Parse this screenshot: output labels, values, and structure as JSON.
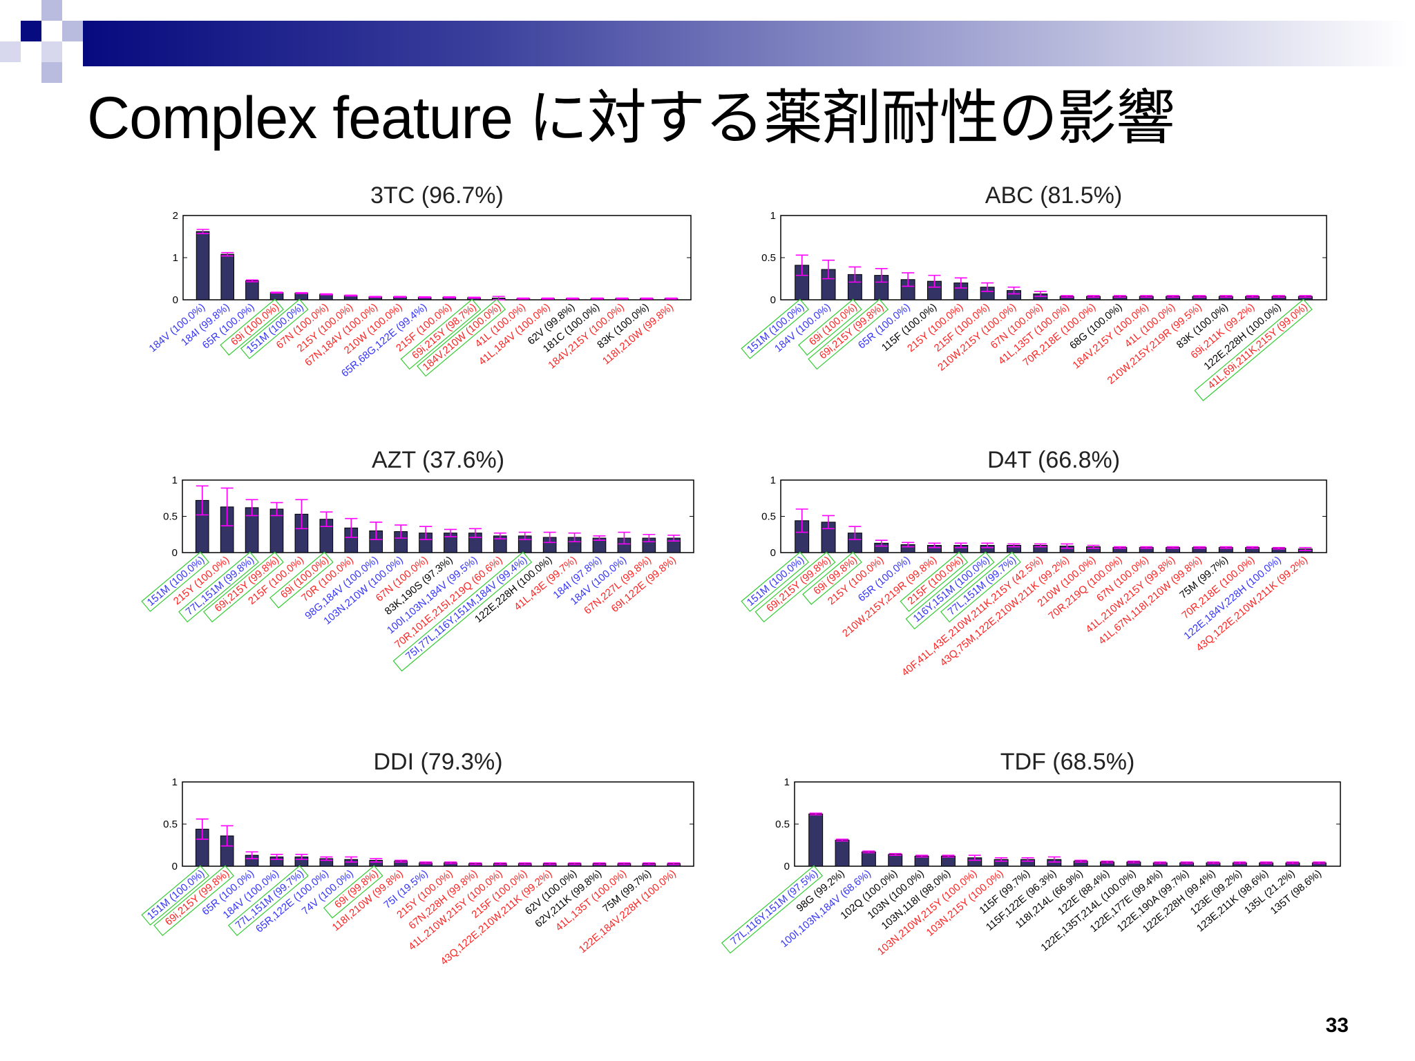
{
  "slide": {
    "title": "Complex feature に対する薬剤耐性の影響",
    "page_number": "33",
    "colors": {
      "bar": "#333366",
      "error": "#ff00ff",
      "box": "#33cc33",
      "label_blue": "#3333ff",
      "label_red": "#ff2222",
      "label_black": "#000000"
    }
  },
  "chart_data": [
    {
      "type": "bar",
      "title": "3TC (96.7%)",
      "ylim": [
        0,
        2
      ],
      "yticks": [
        "0",
        "1",
        "2"
      ],
      "values": [
        1.62,
        1.08,
        0.45,
        0.17,
        0.16,
        0.13,
        0.1,
        0.07,
        0.07,
        0.06,
        0.06,
        0.05,
        0.04,
        0.03,
        0.03,
        0.03,
        0.03,
        0.03,
        0.03,
        0.03
      ],
      "errors": [
        0.05,
        0.04,
        0.02,
        0.01,
        0.01,
        0.01,
        0.01,
        0.01,
        0.01,
        0.01,
        0.01,
        0.01,
        0.04,
        0.01,
        0.01,
        0.01,
        0.01,
        0.01,
        0.01,
        0.01
      ],
      "labels": [
        "184V (100.0%)",
        "184I (99.8%)",
        "65R (100.0%)",
        "69i (100.0%)",
        "151M (100.0%)",
        "67N (100.0%)",
        "215Y (100.0%)",
        "67N,184V (100.0%)",
        "210W (100.0%)",
        "65R,68G,122E (99.4%)",
        "215F (100.0%)",
        "69i,215Y (98.7%)",
        "184V,210W (100.0%)",
        "41L (100.0%)",
        "41L,184V (100.0%)",
        "62V (99.8%)",
        "181C (100.0%)",
        "184V,215Y (100.0%)",
        "83K (100.0%)",
        "118I,210W (99.8%)"
      ],
      "label_colors": [
        "b",
        "b",
        "b",
        "r",
        "b",
        "r",
        "r",
        "r",
        "r",
        "b",
        "r",
        "r",
        "r",
        "r",
        "r",
        "k",
        "k",
        "r",
        "k",
        "r"
      ],
      "boxed": [
        3,
        4,
        11,
        12
      ]
    },
    {
      "type": "bar",
      "title": "ABC (81.5%)",
      "ylim": [
        0,
        1
      ],
      "yticks": [
        "0",
        "0.5",
        "1"
      ],
      "values": [
        0.41,
        0.36,
        0.3,
        0.29,
        0.24,
        0.22,
        0.2,
        0.15,
        0.11,
        0.07,
        0.04,
        0.04,
        0.04,
        0.04,
        0.04,
        0.04,
        0.04,
        0.04,
        0.04,
        0.04
      ],
      "errors": [
        0.12,
        0.11,
        0.09,
        0.08,
        0.08,
        0.07,
        0.06,
        0.05,
        0.04,
        0.03,
        0.01,
        0.01,
        0.01,
        0.01,
        0.01,
        0.01,
        0.01,
        0.01,
        0.01,
        0.01
      ],
      "labels": [
        "151M (100.0%)",
        "184V (100.0%)",
        "69i (100.0%)",
        "69i,215Y (99.8%)",
        "65R (100.0%)",
        "115F (100.0%)",
        "215Y (100.0%)",
        "215F (100.0%)",
        "210W,215Y (100.0%)",
        "67N (100.0%)",
        "41L,135T (100.0%)",
        "70R,218E (100.0%)",
        "68G (100.0%)",
        "184V,215Y (100.0%)",
        "41L (100.0%)",
        "210W,215Y,219R (99.5%)",
        "83K (100.0%)",
        "69i,211K (99.2%)",
        "122E,228H (100.0%)",
        "41L,69i,211K,215Y (99.0%)"
      ],
      "label_colors": [
        "b",
        "b",
        "r",
        "r",
        "b",
        "k",
        "r",
        "r",
        "r",
        "r",
        "r",
        "r",
        "k",
        "r",
        "r",
        "r",
        "k",
        "r",
        "k",
        "r"
      ],
      "boxed": [
        0,
        2,
        3,
        19
      ]
    },
    {
      "type": "bar",
      "title": "AZT (37.6%)",
      "ylim": [
        0,
        1
      ],
      "yticks": [
        "0",
        "0.5",
        "1"
      ],
      "values": [
        0.72,
        0.63,
        0.62,
        0.6,
        0.53,
        0.46,
        0.34,
        0.3,
        0.29,
        0.27,
        0.27,
        0.27,
        0.23,
        0.23,
        0.21,
        0.21,
        0.2,
        0.2,
        0.2,
        0.2
      ],
      "errors": [
        0.2,
        0.26,
        0.11,
        0.09,
        0.2,
        0.1,
        0.13,
        0.12,
        0.09,
        0.09,
        0.05,
        0.06,
        0.04,
        0.05,
        0.07,
        0.06,
        0.03,
        0.08,
        0.05,
        0.04
      ],
      "labels": [
        "151M (100.0%)",
        "215Y (100.0%)",
        "77L,151M (99.8%)",
        "69i,215Y (99.8%)",
        "215F (100.0%)",
        "69i (100.0%)",
        "70R (100.0%)",
        "98G,184V (100.0%)",
        "103N,210W (100.0%)",
        "67N (100.0%)",
        "83K,190S (97.3%)",
        "100I,103N,184V (99.5%)",
        "70R,101E,215I,219Q (60.6%)",
        "75I,77L,116Y,151M,184V (99.4%)",
        "122E,228H (100.0%)",
        "41L,43E (99.7%)",
        "184I (97.8%)",
        "184V (100.0%)",
        "67N,227L (99.8%)",
        "69I,122E (99.8%)"
      ],
      "label_colors": [
        "b",
        "r",
        "b",
        "r",
        "r",
        "r",
        "r",
        "b",
        "b",
        "r",
        "k",
        "b",
        "r",
        "b",
        "k",
        "r",
        "b",
        "b",
        "r",
        "r"
      ],
      "boxed": [
        0,
        2,
        3,
        5,
        13
      ]
    },
    {
      "type": "bar",
      "title": "D4T (66.8%)",
      "ylim": [
        0,
        1
      ],
      "yticks": [
        "0",
        "0.5",
        "1"
      ],
      "values": [
        0.44,
        0.42,
        0.27,
        0.13,
        0.11,
        0.1,
        0.1,
        0.1,
        0.1,
        0.1,
        0.09,
        0.08,
        0.07,
        0.07,
        0.07,
        0.07,
        0.07,
        0.07,
        0.06,
        0.05
      ],
      "errors": [
        0.16,
        0.09,
        0.09,
        0.04,
        0.03,
        0.03,
        0.03,
        0.03,
        0.02,
        0.02,
        0.03,
        0.02,
        0.01,
        0.01,
        0.01,
        0.01,
        0.01,
        0.01,
        0.01,
        0.02
      ],
      "labels": [
        "151M (100.0%)",
        "69i,215Y (99.8%)",
        "69i (99.8%)",
        "215Y (100.0%)",
        "65R (100.0%)",
        "210W,215Y,219R (99.8%)",
        "215F (100.0%)",
        "116Y,151M (100.0%)",
        "77L,151M (99.7%)",
        "40F,41L,43E,210W,211K,215Y (42.5%)",
        "43Q,75M,122E,210W,211K (99.2%)",
        "210W (100.0%)",
        "70R,219Q (100.0%)",
        "67N (100.0%)",
        "41L,210W,215Y (99.8%)",
        "41L,67N,118I,210W (99.8%)",
        "75M (99.7%)",
        "70R,218E (100.0%)",
        "122E,184V,228H (100.0%)",
        "43Q,122E,210W,211K (99.2%)"
      ],
      "label_colors": [
        "b",
        "r",
        "r",
        "r",
        "b",
        "r",
        "r",
        "b",
        "b",
        "r",
        "r",
        "r",
        "r",
        "r",
        "r",
        "r",
        "k",
        "r",
        "b",
        "r"
      ],
      "boxed": [
        0,
        1,
        2,
        6,
        7,
        8
      ]
    },
    {
      "type": "bar",
      "title": "DDI (79.3%)",
      "ylim": [
        0,
        1
      ],
      "yticks": [
        "0",
        "0.5",
        "1"
      ],
      "values": [
        0.44,
        0.36,
        0.13,
        0.11,
        0.11,
        0.09,
        0.08,
        0.07,
        0.06,
        0.04,
        0.04,
        0.03,
        0.03,
        0.03,
        0.03,
        0.03,
        0.03,
        0.03,
        0.03,
        0.03
      ],
      "errors": [
        0.12,
        0.12,
        0.04,
        0.03,
        0.03,
        0.02,
        0.03,
        0.02,
        0.01,
        0.01,
        0.01,
        0.01,
        0.01,
        0.01,
        0.01,
        0.01,
        0.01,
        0.01,
        0.01,
        0.01
      ],
      "labels": [
        "151M (100.0%)",
        "69i,215Y (99.8%)",
        "65R (100.0%)",
        "184V (100.0%)",
        "77L,151M (99.7%)",
        "65R,122E (100.0%)",
        "74V (100.0%)",
        "69i (99.8%)",
        "118I,210W (99.8%)",
        "75I (19.5%)",
        "215Y (100.0%)",
        "67N,228H (99.8%)",
        "41L,210W,215Y (100.0%)",
        "215F (100.0%)",
        "43Q,122E,210W,211K (99.2%)",
        "62V (100.0%)",
        "62V,211K (99.8%)",
        "41L,135T (100.0%)",
        "75M (99.7%)",
        "122E,184V,228H (100.0%)"
      ],
      "label_colors": [
        "b",
        "r",
        "b",
        "b",
        "b",
        "b",
        "b",
        "r",
        "r",
        "b",
        "r",
        "r",
        "r",
        "r",
        "r",
        "k",
        "k",
        "r",
        "k",
        "r"
      ],
      "boxed": [
        0,
        1,
        4,
        7
      ]
    },
    {
      "type": "bar",
      "title": "TDF (68.5%)",
      "ylim": [
        0,
        1
      ],
      "yticks": [
        "0",
        "0.5",
        "1"
      ],
      "values": [
        0.62,
        0.31,
        0.17,
        0.14,
        0.12,
        0.12,
        0.1,
        0.08,
        0.08,
        0.08,
        0.06,
        0.05,
        0.05,
        0.04,
        0.04,
        0.04,
        0.04,
        0.04,
        0.04,
        0.04
      ],
      "errors": [
        0.01,
        0.01,
        0.01,
        0.01,
        0.01,
        0.01,
        0.03,
        0.02,
        0.02,
        0.03,
        0.01,
        0.01,
        0.01,
        0.01,
        0.01,
        0.01,
        0.01,
        0.01,
        0.01,
        0.01
      ],
      "labels": [
        "77L,116Y,151M (97.5%)",
        "98G (99.2%)",
        "100I,103N,184V (68.6%)",
        "102Q (100.0%)",
        "103N (100.0%)",
        "103N,118I (98.0%)",
        "103N,210W,215Y (100.0%)",
        "103N,215Y (100.0%)",
        "115F (99.7%)",
        "115F,122E (96.3%)",
        "118I,214L (66.9%)",
        "122E (88.4%)",
        "122E,135T,214L (100.0%)",
        "122E,177E (99.4%)",
        "122E,190A (99.7%)",
        "122E,228H (99.4%)",
        "123E (99.2%)",
        "123E,211K (98.6%)",
        "135L (21.2%)",
        "135T (98.6%)"
      ],
      "label_colors": [
        "b",
        "k",
        "b",
        "k",
        "k",
        "k",
        "r",
        "r",
        "k",
        "k",
        "k",
        "k",
        "k",
        "k",
        "k",
        "k",
        "k",
        "k",
        "k",
        "k"
      ],
      "boxed": [
        0
      ]
    }
  ]
}
